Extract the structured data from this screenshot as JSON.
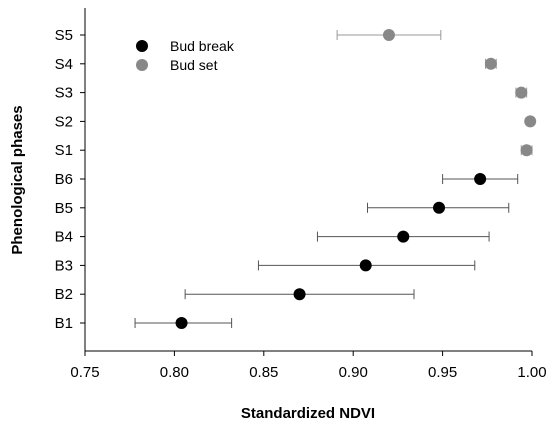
{
  "chart_data": {
    "type": "scatter",
    "title": "",
    "xlabel": "Standardized NDVI",
    "ylabel": "Phenological phases",
    "xlim": [
      0.75,
      1.0
    ],
    "x_ticks": [
      "0.75",
      "0.80",
      "0.85",
      "0.90",
      "0.95",
      "1.00"
    ],
    "categories": [
      "B1",
      "B2",
      "B3",
      "B4",
      "B5",
      "B6",
      "S1",
      "S2",
      "S3",
      "S4",
      "S5"
    ],
    "legend_position": "top-left",
    "grid": false,
    "series": [
      {
        "name": "Bud break",
        "color": "#000000",
        "points": [
          {
            "category": "B1",
            "x": 0.804,
            "xerr_low": 0.778,
            "xerr_high": 0.832
          },
          {
            "category": "B2",
            "x": 0.87,
            "xerr_low": 0.806,
            "xerr_high": 0.934
          },
          {
            "category": "B3",
            "x": 0.907,
            "xerr_low": 0.847,
            "xerr_high": 0.968
          },
          {
            "category": "B4",
            "x": 0.928,
            "xerr_low": 0.88,
            "xerr_high": 0.976
          },
          {
            "category": "B5",
            "x": 0.948,
            "xerr_low": 0.908,
            "xerr_high": 0.987
          },
          {
            "category": "B6",
            "x": 0.971,
            "xerr_low": 0.95,
            "xerr_high": 0.992
          }
        ]
      },
      {
        "name": "Bud set",
        "color": "#888888",
        "points": [
          {
            "category": "S1",
            "x": 0.997,
            "xerr_low": 0.994,
            "xerr_high": 1.0
          },
          {
            "category": "S2",
            "x": 0.999,
            "xerr_low": 0.998,
            "xerr_high": 1.0
          },
          {
            "category": "S3",
            "x": 0.994,
            "xerr_low": 0.991,
            "xerr_high": 0.997
          },
          {
            "category": "S4",
            "x": 0.977,
            "xerr_low": 0.974,
            "xerr_high": 0.98
          },
          {
            "category": "S5",
            "x": 0.92,
            "xerr_low": 0.891,
            "xerr_high": 0.949
          }
        ]
      }
    ]
  }
}
